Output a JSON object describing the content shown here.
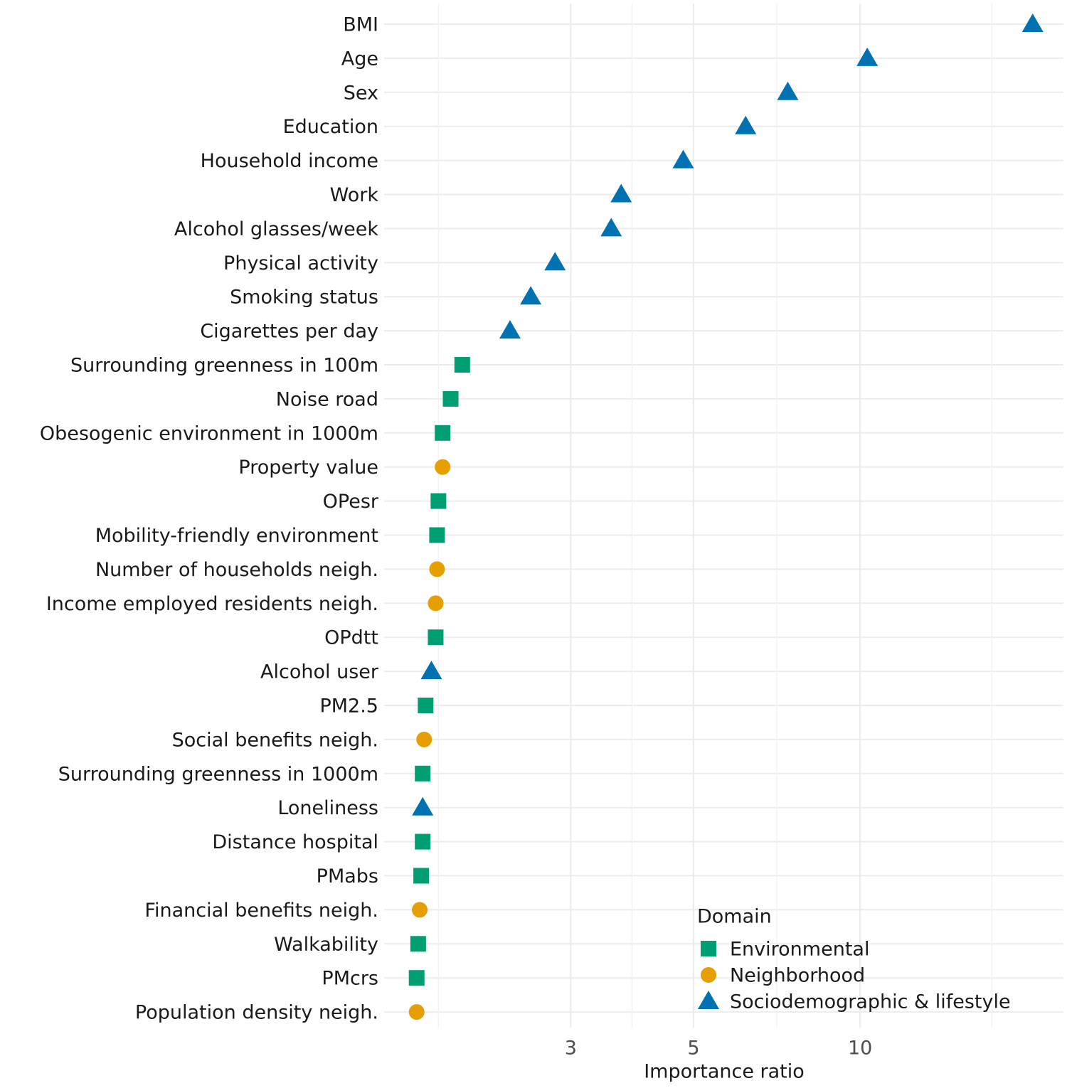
{
  "chart_data": {
    "type": "dot",
    "x_label": "Importance ratio",
    "log_x": true,
    "xlim": [
      1.38,
      23.3
    ],
    "xticks": [
      3,
      5,
      10
    ],
    "minor_xticks": [
      1.73,
      3.87,
      7.07,
      17.3
    ],
    "grid": true,
    "legend_title": "Domain",
    "legend_position": "bottom-right",
    "categories": [
      "BMI",
      "Age",
      "Sex",
      "Education",
      "Household income",
      "Work",
      "Alcohol glasses/week",
      "Physical activity",
      "Smoking status",
      "Cigarettes per day",
      "Surrounding greenness in 100m",
      "Noise road",
      "Obesogenic environment in 1000m",
      "Property value",
      "OPesr",
      "Mobility-friendly environment",
      "Number of households neigh.",
      "Income employed residents neigh.",
      "OPdtt",
      "Alcohol user",
      "PM2.5",
      "Social benefits neigh.",
      "Surrounding greenness in 1000m",
      "Loneliness",
      "Distance hospital",
      "PMabs",
      "Financial benefits neigh.",
      "Walkability",
      "PMcrs",
      "Population density neigh."
    ],
    "series": [
      {
        "name": "Environmental",
        "color": "#009E73",
        "marker": "square",
        "values": [
          null,
          null,
          null,
          null,
          null,
          null,
          null,
          null,
          null,
          null,
          1.91,
          1.82,
          1.76,
          null,
          1.73,
          1.72,
          null,
          null,
          1.71,
          null,
          1.64,
          null,
          1.62,
          null,
          1.62,
          1.61,
          null,
          1.59,
          1.58,
          null
        ]
      },
      {
        "name": "Neighborhood",
        "color": "#E69F00",
        "marker": "circle",
        "values": [
          null,
          null,
          null,
          null,
          null,
          null,
          null,
          null,
          null,
          null,
          null,
          null,
          null,
          1.76,
          null,
          null,
          1.72,
          1.71,
          null,
          null,
          null,
          1.63,
          null,
          null,
          null,
          null,
          1.6,
          null,
          null,
          1.58
        ]
      },
      {
        "name": "Sociodemographic & lifestyle",
        "color": "#0072B2",
        "marker": "triangle",
        "values": [
          20.5,
          10.3,
          7.4,
          6.21,
          4.79,
          3.7,
          3.55,
          2.81,
          2.54,
          2.33,
          null,
          null,
          null,
          null,
          null,
          null,
          null,
          null,
          null,
          1.68,
          null,
          null,
          null,
          1.62,
          null,
          null,
          null,
          null,
          null,
          null
        ]
      }
    ]
  }
}
